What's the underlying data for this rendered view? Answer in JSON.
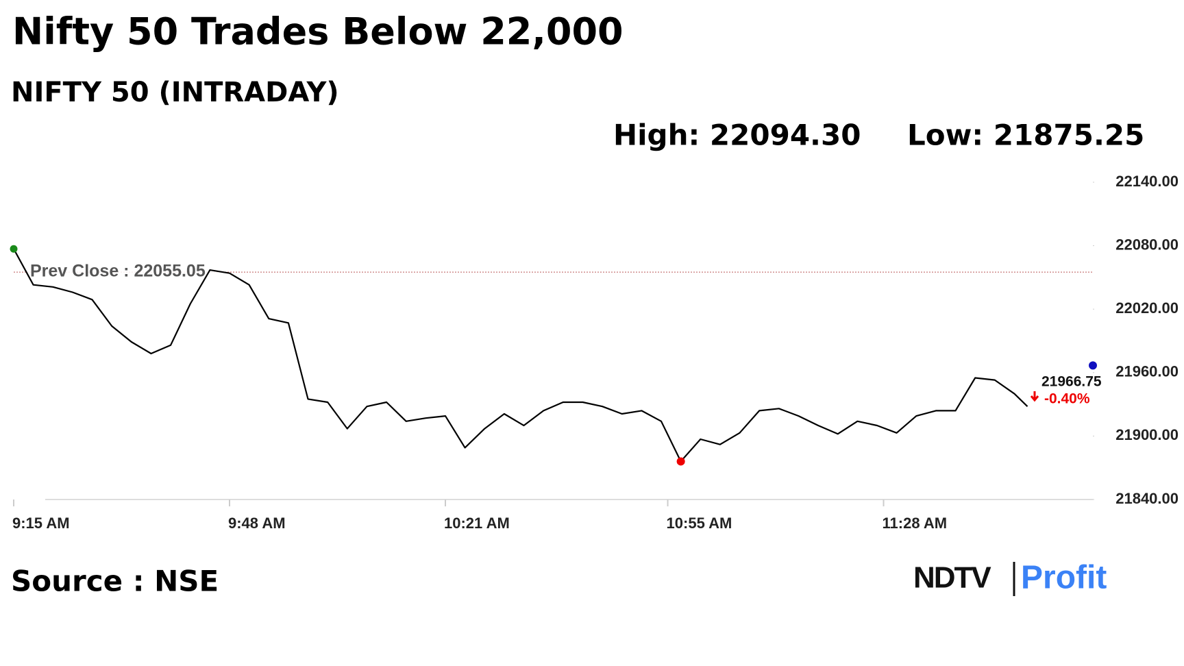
{
  "chart_data": {
    "type": "line",
    "title": "Nifty 50 Trades Below 22,000",
    "subtitle": "NIFTY 50 (INTRADAY)",
    "high_label": "High: 22094.30",
    "low_label": "Low: 21875.25",
    "prev_close": 22055.05,
    "prev_close_label": "Prev Close : 22055.05",
    "last_price": 21966.75,
    "change_label": "-0.40%",
    "source": "Source : NSE",
    "logo": [
      "NDTV",
      "Profit"
    ],
    "color": "#000000",
    "x": [
      555,
      558,
      561,
      564,
      567,
      570,
      573,
      576,
      579,
      582,
      585,
      588,
      591,
      594,
      597,
      600,
      603,
      606,
      609,
      612,
      615,
      618,
      621,
      624,
      627,
      630,
      633,
      636,
      639,
      642,
      645,
      648,
      651,
      654,
      657,
      660,
      663,
      666,
      669,
      672,
      675,
      678,
      681,
      684,
      687,
      690,
      693,
      696,
      699,
      702,
      705,
      708,
      710
    ],
    "values": [
      22077,
      22043,
      22041,
      22036,
      22029,
      22004,
      21989,
      21978,
      21986,
      22025,
      22057,
      22054,
      22043,
      22011,
      22007,
      21935,
      21932,
      21907,
      21928,
      21932,
      21914,
      21917,
      21919,
      21889,
      21907,
      21921,
      21910,
      21924,
      21932,
      21932,
      21928,
      21921,
      21924,
      21914,
      21876,
      21897,
      21892,
      21903,
      21924,
      21926,
      21919,
      21910,
      21902,
      21914,
      21910,
      21903,
      21919,
      21924,
      21924,
      21955,
      21953,
      21940,
      21928
    ],
    "xlim": [
      555,
      720
    ],
    "xticks": [
      {
        "value": 555,
        "label": "9:15 AM"
      },
      {
        "value": 588,
        "label": "9:48 AM"
      },
      {
        "value": 621,
        "label": "10:21 AM"
      },
      {
        "value": 655,
        "label": "10:55 AM"
      },
      {
        "value": 688,
        "label": "11:28 AM"
      }
    ],
    "ylim": [
      21840,
      22140
    ],
    "yticks": [
      {
        "value": 21840,
        "label": "21840.00"
      },
      {
        "value": 21900,
        "label": "21900.00"
      },
      {
        "value": 21960,
        "label": "21960.00"
      },
      {
        "value": 22020,
        "label": "22020.00"
      },
      {
        "value": 22080,
        "label": "22080.00"
      },
      {
        "value": 22140,
        "label": "22140.00"
      }
    ],
    "grid": false
  }
}
